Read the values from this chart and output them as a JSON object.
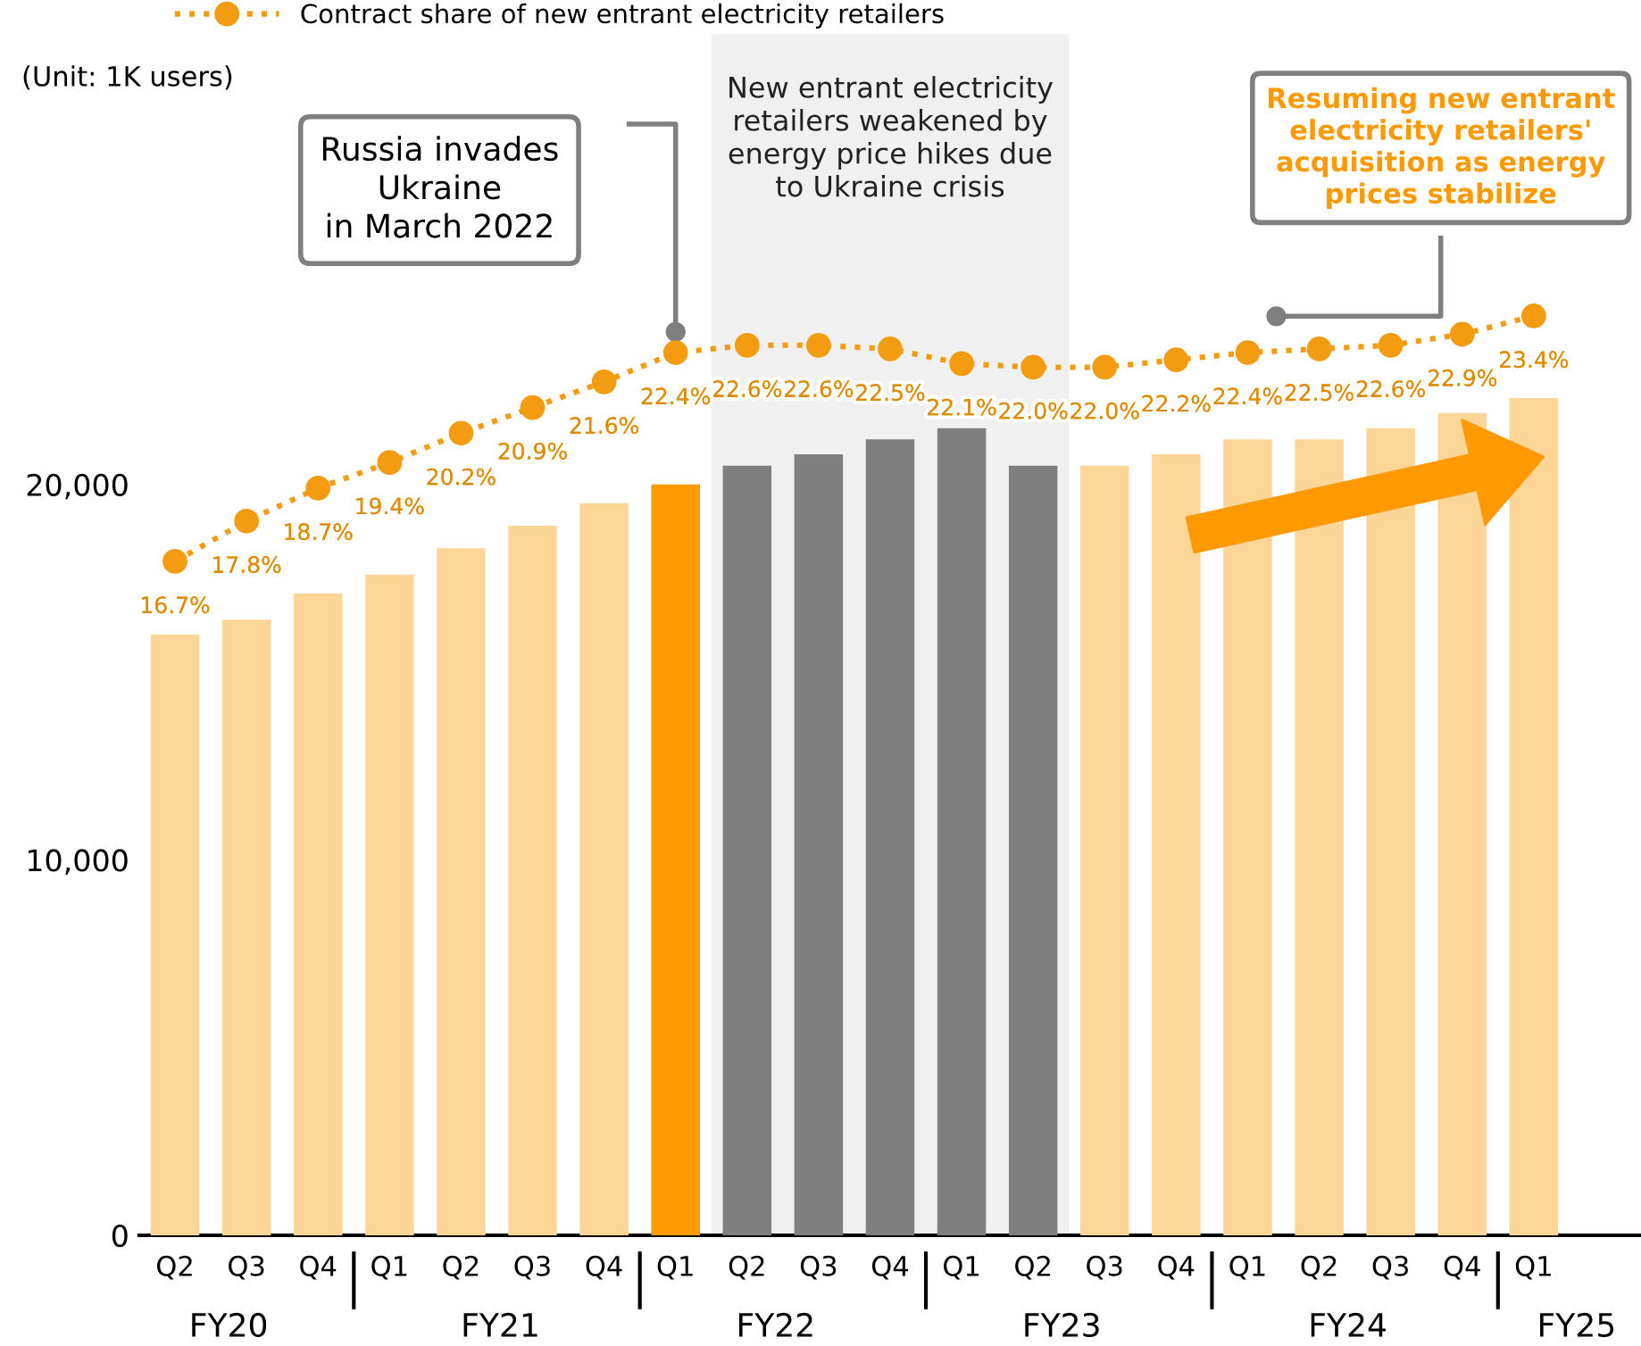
{
  "chart_data": {
    "type": "bar",
    "ylabel": "(Unit: 1K users)",
    "categories": [
      "Q2",
      "Q3",
      "Q4",
      "Q1",
      "Q2",
      "Q3",
      "Q4",
      "Q1",
      "Q2",
      "Q3",
      "Q4",
      "Q1",
      "Q2",
      "Q3",
      "Q4",
      "Q1",
      "Q2",
      "Q3",
      "Q4",
      "Q1"
    ],
    "ylim": [
      0,
      32000
    ],
    "yticks": [
      0,
      {
        "value": 10000,
        "label": "10,000"
      },
      {
        "value": 20000,
        "label": "20,000"
      }
    ],
    "y2lim": [
      -1.7,
      31.1
    ],
    "series": [
      {
        "colors": [
          "#fdd597",
          "#fdd597",
          "#fdd597",
          "#fdd597",
          "#fdd597",
          "#fdd597",
          "#fdd597",
          "#ff9900",
          "#7f7f7f",
          "#7f7f7f",
          "#7f7f7f",
          "#7f7f7f",
          "#7f7f7f",
          "#fdd597",
          "#fdd597",
          "#fdd597",
          "#fdd597",
          "#fdd597",
          "#fdd597",
          "#fdd597"
        ],
        "values": [
          16000,
          16400,
          17100,
          17600,
          18300,
          18900,
          19500,
          20000,
          20500,
          20800,
          21200,
          21500,
          20500,
          20500,
          20800,
          21200,
          21200,
          21500,
          21900,
          22300
        ]
      },
      {
        "type": "line",
        "name": "Contract share of new entrant electricity retailers",
        "color": "#f39c12",
        "axis": "y2",
        "marker": "circle",
        "line_style": "dotted",
        "values": [
          16.7,
          17.8,
          18.7,
          19.4,
          20.2,
          20.9,
          21.6,
          22.4,
          22.6,
          22.6,
          22.5,
          22.1,
          22.0,
          22.0,
          22.2,
          22.4,
          22.5,
          22.6,
          22.9,
          23.4
        ],
        "value_labels": [
          "16.7%",
          "17.8%",
          "18.7%",
          "19.4%",
          "20.2%",
          "20.9%",
          "21.6%",
          "22.4%",
          "22.6%",
          "22.6%",
          "22.5%",
          "22.1%",
          "22.0%",
          "22.0%",
          "22.2%",
          "22.4%",
          "22.5%",
          "22.6%",
          "22.9%",
          "23.4%"
        ]
      }
    ],
    "annotations": [
      "New entrant electricity\nretailers weakened by\nenergy price hikes due\nto Ukraine crisis",
      "FY20",
      "FY21",
      "FY22",
      "FY23",
      "FY24",
      "FY25",
      "Russia invades\nUkraine\nin March 2022",
      "Resuming new entrant\nelectricity retailers'\nacquisition as energy\nprices stabilize"
    ],
    "legend": "top",
    "grid": false
  }
}
